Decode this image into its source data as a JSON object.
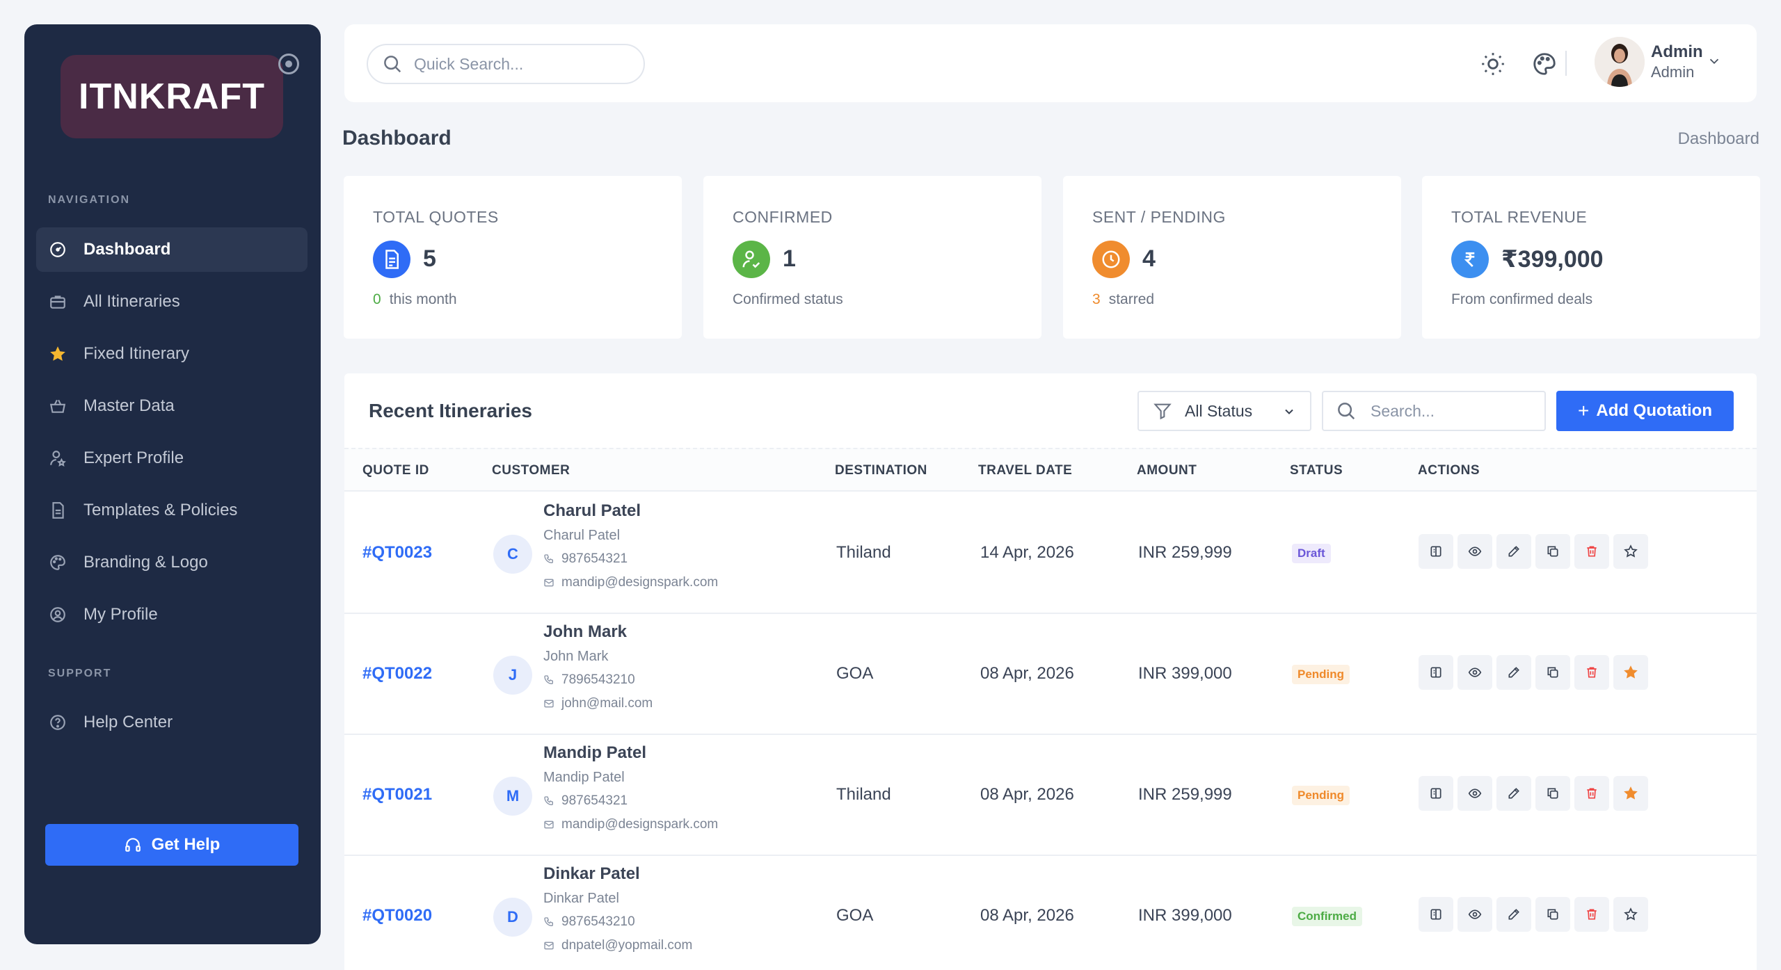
{
  "sidebar": {
    "logo": "ITNKRAFT",
    "nav_heading": "NAVIGATION",
    "items": [
      {
        "label": "Dashboard",
        "icon": "dashboard-icon",
        "active": true
      },
      {
        "label": "All Itineraries",
        "icon": "briefcase-icon"
      },
      {
        "label": "Fixed Itinerary",
        "icon": "star-icon"
      },
      {
        "label": "Master Data",
        "icon": "basket-icon"
      },
      {
        "label": "Expert Profile",
        "icon": "user-star-icon"
      },
      {
        "label": "Templates & Policies",
        "icon": "document-icon"
      },
      {
        "label": "Branding & Logo",
        "icon": "palette-icon"
      },
      {
        "label": "My Profile",
        "icon": "user-circle-icon"
      }
    ],
    "support_heading": "SUPPORT",
    "support_items": [
      {
        "label": "Help Center",
        "icon": "help-circle-icon"
      }
    ],
    "get_help": "Get Help"
  },
  "topbar": {
    "search_placeholder": "Quick Search...",
    "user_name": "Admin",
    "user_role": "Admin"
  },
  "page": {
    "title": "Dashboard",
    "breadcrumb": "Dashboard"
  },
  "stats": [
    {
      "label": "TOTAL QUOTES",
      "value": "5",
      "sub_num": "0",
      "sub_text": "this month",
      "color": "#2f6cf6",
      "sub_color": "#4cab44",
      "icon": "document-icon"
    },
    {
      "label": "CONFIRMED",
      "value": "1",
      "sub_num": "",
      "sub_text": "Confirmed status",
      "color": "#5bb547",
      "sub_color": "#6b7382",
      "icon": "user-check-icon"
    },
    {
      "label": "SENT / PENDING",
      "value": "4",
      "sub_num": "3",
      "sub_text": "starred",
      "color": "#f08c2e",
      "sub_color": "#ef8a2b",
      "icon": "clock-icon"
    },
    {
      "label": "TOTAL REVENUE",
      "value": "₹399,000",
      "sub_num": "",
      "sub_text": "From confirmed deals",
      "color": "#3c8ff0",
      "sub_color": "#6b7382",
      "icon": "rupee-icon"
    }
  ],
  "table": {
    "title": "Recent Itineraries",
    "status_filter": "All Status",
    "search_placeholder": "Search...",
    "add_button": "Add Quotation",
    "columns": [
      "QUOTE ID",
      "CUSTOMER",
      "DESTINATION",
      "TRAVEL DATE",
      "AMOUNT",
      "STATUS",
      "ACTIONS"
    ],
    "rows": [
      {
        "id": "#QT0023",
        "initial": "C",
        "name": "Charul Patel",
        "sub": "Charul Patel",
        "phone": "987654321",
        "email": "mandip@designspark.com",
        "destination": "Thiland",
        "date": "14 Apr, 2026",
        "amount": "INR 259,999",
        "status": "Draft",
        "status_class": "draft",
        "starred": false
      },
      {
        "id": "#QT0022",
        "initial": "J",
        "name": "John Mark",
        "sub": "John Mark",
        "phone": "7896543210",
        "email": "john@mail.com",
        "destination": "GOA",
        "date": "08 Apr, 2026",
        "amount": "INR 399,000",
        "status": "Pending",
        "status_class": "pending",
        "starred": true
      },
      {
        "id": "#QT0021",
        "initial": "M",
        "name": "Mandip Patel",
        "sub": "Mandip Patel",
        "phone": "987654321",
        "email": "mandip@designspark.com",
        "destination": "Thiland",
        "date": "08 Apr, 2026",
        "amount": "INR 259,999",
        "status": "Pending",
        "status_class": "pending",
        "starred": true
      },
      {
        "id": "#QT0020",
        "initial": "D",
        "name": "Dinkar Patel",
        "sub": "Dinkar Patel",
        "phone": "9876543210",
        "email": "dnpatel@yopmail.com",
        "destination": "GOA",
        "date": "08 Apr, 2026",
        "amount": "INR 399,000",
        "status": "Confirmed",
        "status_class": "confirmed",
        "starred": false
      }
    ]
  }
}
